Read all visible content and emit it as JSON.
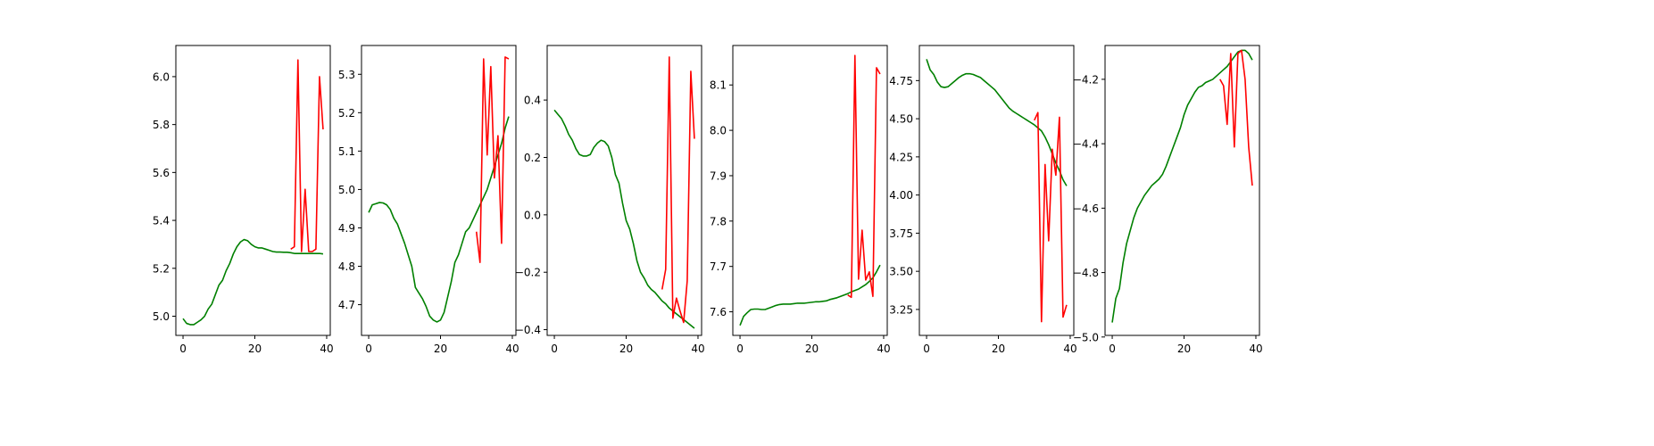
{
  "chart_data": [
    {
      "type": "line",
      "xlim": [
        -2,
        41
      ],
      "ylim": [
        4.92,
        6.13
      ],
      "xticks": [
        0,
        20,
        40
      ],
      "yticks": [
        5.0,
        5.2,
        5.4,
        5.6,
        5.8,
        6.0
      ],
      "ytick_labels": [
        "5.0",
        "5.2",
        "5.4",
        "5.6",
        "5.8",
        "6.0"
      ],
      "series": [
        {
          "color": "#008000",
          "x": [
            0,
            1,
            2,
            3,
            4,
            5,
            6,
            7,
            8,
            9,
            10,
            11,
            12,
            13,
            14,
            15,
            16,
            17,
            18,
            19,
            20,
            21,
            22,
            23,
            24,
            25,
            26,
            27,
            28,
            29,
            30,
            31,
            32,
            33,
            34,
            35,
            36,
            37,
            38,
            39
          ],
          "y": [
            4.99,
            4.97,
            4.965,
            4.965,
            4.975,
            4.985,
            5.0,
            5.03,
            5.05,
            5.09,
            5.13,
            5.15,
            5.19,
            5.22,
            5.26,
            5.29,
            5.31,
            5.32,
            5.315,
            5.3,
            5.29,
            5.285,
            5.285,
            5.28,
            5.275,
            5.27,
            5.268,
            5.268,
            5.267,
            5.267,
            5.265,
            5.262,
            5.262,
            5.262,
            5.262,
            5.262,
            5.262,
            5.262,
            5.262,
            5.26
          ]
        },
        {
          "color": "#ff0000",
          "x": [
            30,
            31,
            32,
            33,
            34,
            35,
            36,
            37,
            38,
            39
          ],
          "y": [
            5.28,
            5.29,
            6.07,
            5.27,
            5.53,
            5.27,
            5.27,
            5.28,
            6.0,
            5.78
          ]
        }
      ]
    },
    {
      "type": "line",
      "xlim": [
        -2,
        41
      ],
      "ylim": [
        4.62,
        5.375
      ],
      "xticks": [
        0,
        20,
        40
      ],
      "yticks": [
        4.7,
        4.8,
        4.9,
        5.0,
        5.1,
        5.2,
        5.3
      ],
      "ytick_labels": [
        "4.7",
        "4.8",
        "4.9",
        "5.0",
        "5.1",
        "5.2",
        "5.3"
      ],
      "series": [
        {
          "color": "#008000",
          "x": [
            0,
            1,
            2,
            3,
            4,
            5,
            6,
            7,
            8,
            9,
            10,
            11,
            12,
            13,
            14,
            15,
            16,
            17,
            18,
            19,
            20,
            21,
            22,
            23,
            24,
            25,
            26,
            27,
            28,
            29,
            30,
            31,
            32,
            33,
            34,
            35,
            36,
            37,
            38,
            39
          ],
          "y": [
            4.94,
            4.96,
            4.963,
            4.966,
            4.965,
            4.96,
            4.948,
            4.925,
            4.91,
            4.885,
            4.86,
            4.83,
            4.8,
            4.745,
            4.73,
            4.715,
            4.695,
            4.67,
            4.66,
            4.655,
            4.66,
            4.68,
            4.72,
            4.76,
            4.81,
            4.83,
            4.86,
            4.89,
            4.9,
            4.92,
            4.94,
            4.96,
            4.98,
            5.0,
            5.03,
            5.06,
            5.09,
            5.12,
            5.16,
            5.19
          ]
        },
        {
          "color": "#ff0000",
          "x": [
            30,
            31,
            32,
            33,
            34,
            35,
            36,
            37,
            38,
            39
          ],
          "y": [
            4.89,
            4.81,
            5.34,
            5.09,
            5.32,
            5.03,
            5.14,
            4.86,
            5.345,
            5.34
          ]
        }
      ]
    },
    {
      "type": "line",
      "xlim": [
        -2,
        41
      ],
      "ylim": [
        -0.42,
        0.59
      ],
      "xticks": [
        0,
        20,
        40
      ],
      "yticks": [
        -0.4,
        -0.2,
        0.0,
        0.2,
        0.4
      ],
      "ytick_labels": [
        "−0.4",
        "−0.2",
        "0.0",
        "0.2",
        "0.4"
      ],
      "series": [
        {
          "color": "#008000",
          "x": [
            0,
            1,
            2,
            3,
            4,
            5,
            6,
            7,
            8,
            9,
            10,
            11,
            12,
            13,
            14,
            15,
            16,
            17,
            18,
            19,
            20,
            21,
            22,
            23,
            24,
            25,
            26,
            27,
            28,
            29,
            30,
            31,
            32,
            33,
            34,
            35,
            36,
            37,
            38,
            39
          ],
          "y": [
            0.365,
            0.35,
            0.335,
            0.31,
            0.28,
            0.26,
            0.23,
            0.21,
            0.205,
            0.205,
            0.21,
            0.235,
            0.25,
            0.26,
            0.255,
            0.24,
            0.2,
            0.14,
            0.11,
            0.04,
            -0.02,
            -0.05,
            -0.1,
            -0.16,
            -0.2,
            -0.22,
            -0.245,
            -0.26,
            -0.27,
            -0.285,
            -0.3,
            -0.31,
            -0.325,
            -0.335,
            -0.345,
            -0.355,
            -0.365,
            -0.375,
            -0.385,
            -0.395
          ]
        },
        {
          "color": "#ff0000",
          "x": [
            30,
            31,
            32,
            33,
            34,
            35,
            36,
            37,
            38,
            39
          ],
          "y": [
            -0.26,
            -0.19,
            0.55,
            -0.36,
            -0.29,
            -0.335,
            -0.375,
            -0.23,
            0.5,
            0.265
          ]
        }
      ]
    },
    {
      "type": "line",
      "xlim": [
        -2,
        41
      ],
      "ylim": [
        7.548,
        8.187
      ],
      "xticks": [
        0,
        20,
        40
      ],
      "yticks": [
        7.6,
        7.7,
        7.8,
        7.9,
        8.0,
        8.1
      ],
      "ytick_labels": [
        "7.6",
        "7.7",
        "7.8",
        "7.9",
        "8.0",
        "8.1"
      ],
      "series": [
        {
          "color": "#008000",
          "x": [
            0,
            1,
            2,
            3,
            4,
            5,
            6,
            7,
            8,
            9,
            10,
            11,
            12,
            13,
            14,
            15,
            16,
            17,
            18,
            19,
            20,
            21,
            22,
            23,
            24,
            25,
            26,
            27,
            28,
            29,
            30,
            31,
            32,
            33,
            34,
            35,
            36,
            37,
            38,
            39
          ],
          "y": [
            7.57,
            7.59,
            7.598,
            7.605,
            7.606,
            7.606,
            7.605,
            7.605,
            7.608,
            7.611,
            7.614,
            7.616,
            7.617,
            7.617,
            7.617,
            7.618,
            7.619,
            7.619,
            7.619,
            7.62,
            7.621,
            7.622,
            7.622,
            7.623,
            7.624,
            7.627,
            7.629,
            7.631,
            7.634,
            7.637,
            7.64,
            7.644,
            7.647,
            7.65,
            7.655,
            7.66,
            7.667,
            7.675,
            7.688,
            7.703
          ]
        },
        {
          "color": "#ff0000",
          "x": [
            30,
            31,
            32,
            33,
            34,
            35,
            36,
            37,
            38,
            39
          ],
          "y": [
            7.637,
            7.632,
            8.165,
            7.672,
            7.78,
            7.67,
            7.688,
            7.634,
            8.138,
            8.124
          ]
        }
      ]
    },
    {
      "type": "line",
      "xlim": [
        -2,
        41
      ],
      "ylim": [
        3.08,
        4.98
      ],
      "xticks": [
        0,
        20,
        40
      ],
      "yticks": [
        3.25,
        3.5,
        3.75,
        4.0,
        4.25,
        4.5,
        4.75
      ],
      "ytick_labels": [
        "3.25",
        "3.50",
        "3.75",
        "4.00",
        "4.25",
        "4.50",
        "4.75"
      ],
      "series": [
        {
          "color": "#008000",
          "x": [
            0,
            1,
            2,
            3,
            4,
            5,
            6,
            7,
            8,
            9,
            10,
            11,
            12,
            13,
            14,
            15,
            16,
            17,
            18,
            19,
            20,
            21,
            22,
            23,
            24,
            25,
            26,
            27,
            28,
            29,
            30,
            31,
            32,
            33,
            34,
            35,
            36,
            37,
            38,
            39
          ],
          "y": [
            4.89,
            4.82,
            4.79,
            4.74,
            4.71,
            4.705,
            4.71,
            4.73,
            4.75,
            4.77,
            4.785,
            4.795,
            4.795,
            4.79,
            4.78,
            4.77,
            4.75,
            4.73,
            4.71,
            4.69,
            4.66,
            4.63,
            4.6,
            4.57,
            4.55,
            4.535,
            4.52,
            4.505,
            4.49,
            4.475,
            4.46,
            4.44,
            4.42,
            4.38,
            4.33,
            4.27,
            4.21,
            4.16,
            4.1,
            4.06
          ]
        },
        {
          "color": "#ff0000",
          "x": [
            30,
            31,
            32,
            33,
            34,
            35,
            36,
            37,
            38,
            39
          ],
          "y": [
            4.49,
            4.54,
            3.17,
            4.2,
            3.7,
            4.3,
            4.13,
            4.51,
            3.2,
            3.28
          ]
        }
      ]
    },
    {
      "type": "line",
      "xlim": [
        -2,
        41
      ],
      "ylim": [
        -4.995,
        -4.095
      ],
      "xticks": [
        0,
        20,
        40
      ],
      "yticks": [
        -4.2,
        -4.4,
        -4.6,
        -4.8,
        -5.0
      ],
      "ytick_labels": [
        "−4.2",
        "−4.4",
        "−4.6",
        "−4.8",
        "−5.0"
      ],
      "series": [
        {
          "color": "#008000",
          "x": [
            0,
            1,
            2,
            3,
            4,
            5,
            6,
            7,
            8,
            9,
            10,
            11,
            12,
            13,
            14,
            15,
            16,
            17,
            18,
            19,
            20,
            21,
            22,
            23,
            24,
            25,
            26,
            27,
            28,
            29,
            30,
            31,
            32,
            33,
            34,
            35,
            36,
            37,
            38,
            39
          ],
          "y": [
            -4.955,
            -4.88,
            -4.85,
            -4.77,
            -4.71,
            -4.67,
            -4.63,
            -4.6,
            -4.58,
            -4.56,
            -4.545,
            -4.53,
            -4.52,
            -4.51,
            -4.495,
            -4.47,
            -4.44,
            -4.41,
            -4.38,
            -4.35,
            -4.31,
            -4.28,
            -4.26,
            -4.24,
            -4.225,
            -4.22,
            -4.21,
            -4.205,
            -4.2,
            -4.19,
            -4.18,
            -4.17,
            -4.16,
            -4.145,
            -4.13,
            -4.115,
            -4.11,
            -4.11,
            -4.12,
            -4.14
          ]
        },
        {
          "color": "#ff0000",
          "x": [
            30,
            31,
            32,
            33,
            34,
            35,
            36,
            37,
            38,
            39
          ],
          "y": [
            -4.2,
            -4.22,
            -4.34,
            -4.12,
            -4.41,
            -4.12,
            -4.11,
            -4.2,
            -4.41,
            -4.53
          ]
        }
      ]
    }
  ]
}
